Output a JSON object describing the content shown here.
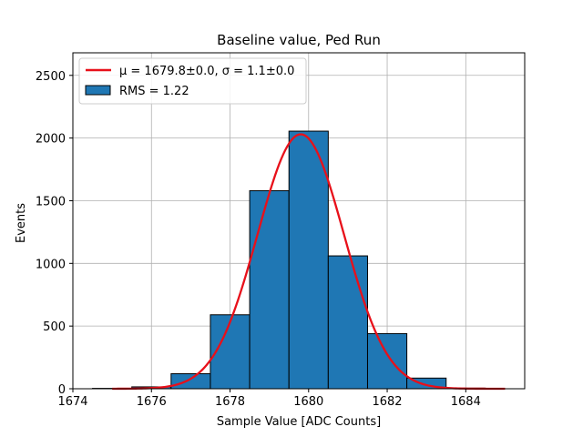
{
  "chart_data": {
    "type": "bar",
    "title": "Baseline value, Ped Run",
    "xlabel": "Sample Value [ADC Counts]",
    "ylabel": "Events",
    "xlim": [
      1674,
      1685.5
    ],
    "ylim": [
      0,
      2680
    ],
    "xticks": [
      1674,
      1676,
      1678,
      1680,
      1682,
      1684
    ],
    "yticks": [
      0,
      500,
      1000,
      1500,
      2000,
      2500
    ],
    "grid": true,
    "legend_position": "top-left",
    "histogram": {
      "name": "RMS = 1.22",
      "color": "#1f77b4",
      "edgecolor": "#000000",
      "bins": [
        {
          "x0": 1674.5,
          "x1": 1675.5,
          "value": 3
        },
        {
          "x0": 1675.5,
          "x1": 1676.5,
          "value": 15
        },
        {
          "x0": 1676.5,
          "x1": 1677.5,
          "value": 120
        },
        {
          "x0": 1677.5,
          "x1": 1678.5,
          "value": 590
        },
        {
          "x0": 1678.5,
          "x1": 1679.5,
          "value": 1580
        },
        {
          "x0": 1679.5,
          "x1": 1680.5,
          "value": 2055
        },
        {
          "x0": 1680.5,
          "x1": 1681.5,
          "value": 1060
        },
        {
          "x0": 1681.5,
          "x1": 1682.5,
          "value": 440
        },
        {
          "x0": 1682.5,
          "x1": 1683.5,
          "value": 85
        },
        {
          "x0": 1683.5,
          "x1": 1684.5,
          "value": 5
        }
      ]
    },
    "fit": {
      "name": "μ = 1679.8±0.0, σ = 1.1±0.0",
      "type": "gaussian",
      "color": "#e8101a",
      "amplitude": 2030,
      "mu": 1679.8,
      "sigma": 1.1,
      "x_range": [
        1675,
        1685
      ]
    }
  }
}
